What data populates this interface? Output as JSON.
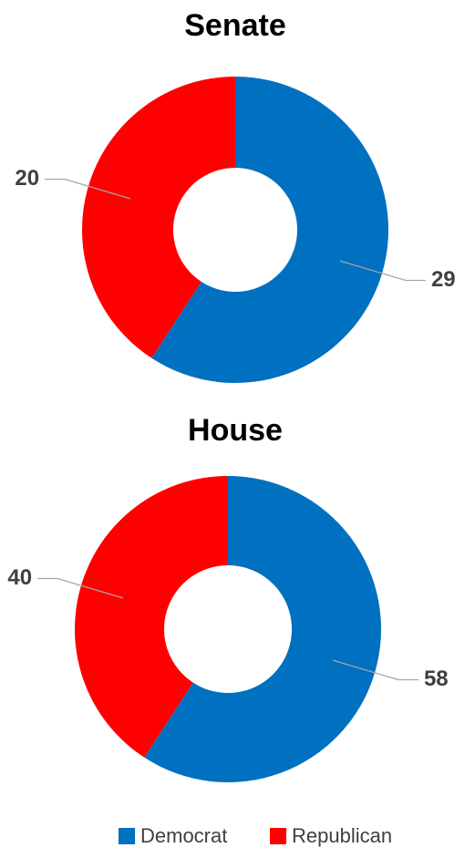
{
  "chart_data": [
    {
      "type": "donut",
      "title": "Senate",
      "categories": [
        "Democrat",
        "Republican"
      ],
      "values": [
        29,
        20
      ],
      "colors": [
        "#0070c0",
        "#ff0000"
      ]
    },
    {
      "type": "donut",
      "title": "House",
      "categories": [
        "Democrat",
        "Republican"
      ],
      "values": [
        58,
        40
      ],
      "colors": [
        "#0070c0",
        "#ff0000"
      ]
    }
  ]
}
